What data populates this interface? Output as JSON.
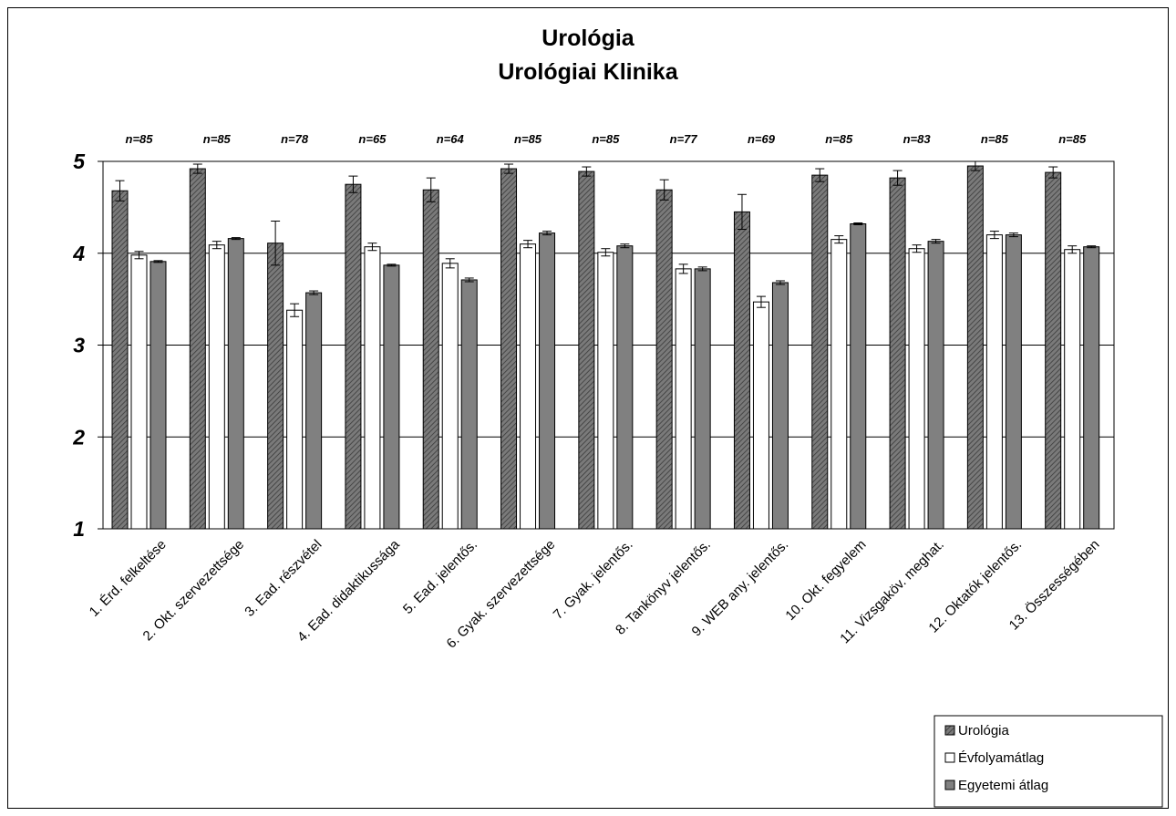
{
  "chart_data": {
    "type": "bar",
    "title": "Urológia",
    "subtitle": "Urológiai Klinika",
    "categories": [
      "1. Érd. felkeltése",
      "2. Okt. szervezettsége",
      "3. Ead. részvétel",
      "4. Ead. didaktikussága",
      "5. Ead. jelentős.",
      "6. Gyak. szervezettsége",
      "7. Gyak. jelentős.",
      "8. Tankönyv jelentős.",
      "9. WEB any. jelentős.",
      "10. Okt. fegyelem",
      "11. Vizsgaköv. meghat.",
      "12. Oktatók jelentős.",
      "13. Összességében"
    ],
    "n_labels": [
      "n=85",
      "n=85",
      "n=78",
      "n=65",
      "n=64",
      "n=85",
      "n=85",
      "n=77",
      "n=69",
      "n=85",
      "n=83",
      "n=85",
      "n=85"
    ],
    "ylim": [
      1,
      5
    ],
    "yticks": [
      "1",
      "2",
      "3",
      "4",
      "5"
    ],
    "grid": true,
    "legend_position": "bottom-right",
    "series": [
      {
        "name": "Urológia",
        "color": "#808080",
        "pattern": "hatched",
        "values": [
          4.68,
          4.92,
          4.11,
          4.75,
          4.69,
          4.92,
          4.89,
          4.69,
          4.45,
          4.85,
          4.82,
          4.95,
          4.88
        ],
        "errors": [
          0.11,
          0.05,
          0.24,
          0.09,
          0.13,
          0.05,
          0.05,
          0.11,
          0.19,
          0.07,
          0.08,
          0.05,
          0.06
        ]
      },
      {
        "name": "Évfolyamátlag",
        "color": "#ffffff",
        "pattern": "solid",
        "values": [
          3.98,
          4.09,
          3.38,
          4.07,
          3.89,
          4.1,
          4.01,
          3.83,
          3.47,
          4.15,
          4.05,
          4.2,
          4.04
        ],
        "errors": [
          0.04,
          0.04,
          0.07,
          0.04,
          0.05,
          0.04,
          0.04,
          0.05,
          0.06,
          0.04,
          0.04,
          0.04,
          0.04
        ]
      },
      {
        "name": "Egyetemi átlag",
        "color": "#808080",
        "pattern": "solid",
        "values": [
          3.91,
          4.16,
          3.57,
          3.87,
          3.71,
          4.22,
          4.08,
          3.83,
          3.68,
          4.32,
          4.13,
          4.2,
          4.07
        ],
        "errors": [
          0.01,
          0.01,
          0.02,
          0.01,
          0.02,
          0.02,
          0.02,
          0.02,
          0.02,
          0.01,
          0.02,
          0.02,
          0.01
        ]
      }
    ]
  }
}
